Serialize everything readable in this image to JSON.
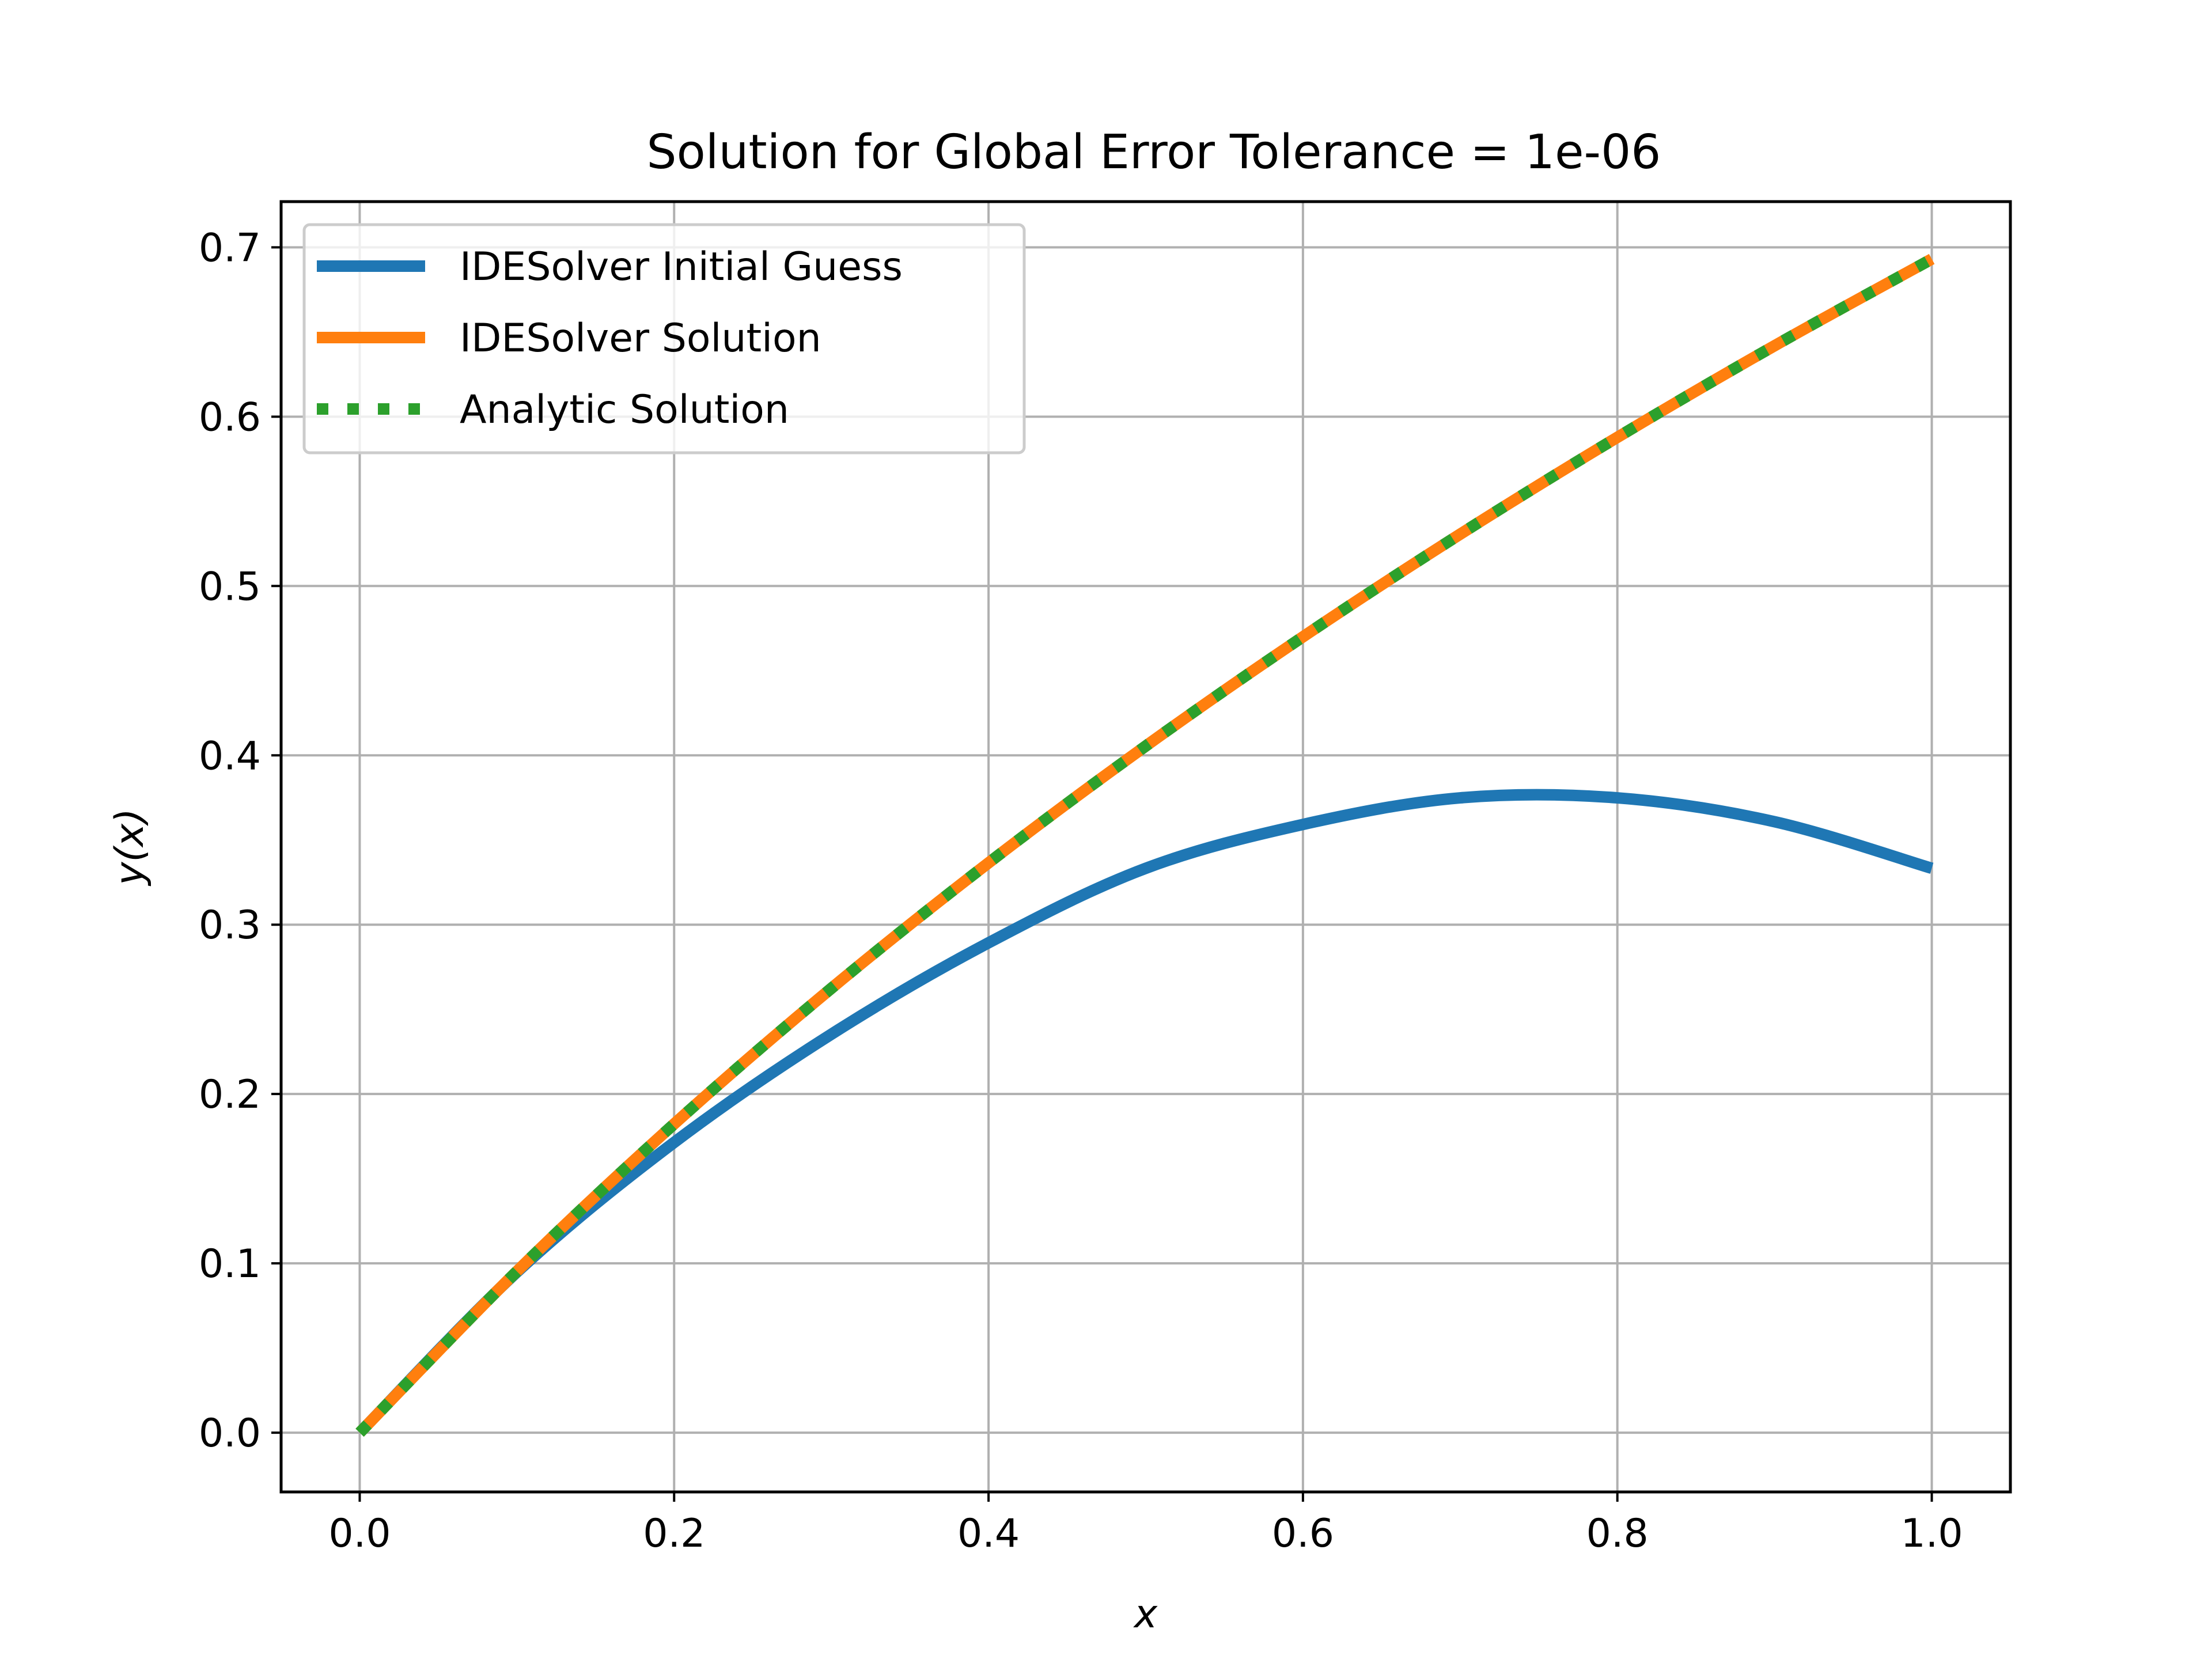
{
  "chart_data": {
    "type": "line",
    "title": "Solution for Global Error Tolerance = 1e-06",
    "xlabel": "x",
    "ylabel": "y(x)",
    "xlim": [
      -0.05,
      1.05
    ],
    "ylim": [
      -0.035,
      0.727
    ],
    "xticks": [
      0.0,
      0.2,
      0.4,
      0.6,
      0.8,
      1.0
    ],
    "xtick_labels": [
      "0.0",
      "0.2",
      "0.4",
      "0.6",
      "0.8",
      "1.0"
    ],
    "yticks": [
      0.0,
      0.1,
      0.2,
      0.3,
      0.4,
      0.5,
      0.6,
      0.7
    ],
    "ytick_labels": [
      "0.0",
      "0.1",
      "0.2",
      "0.3",
      "0.4",
      "0.5",
      "0.6",
      "0.7"
    ],
    "grid": true,
    "legend_position": "top-left",
    "x": [
      0.0,
      0.1,
      0.2,
      0.3,
      0.4,
      0.5,
      0.6,
      0.7,
      0.8,
      0.9,
      1.0
    ],
    "series": [
      {
        "name": "IDESolver Initial Guess",
        "color": "#1f77b4",
        "style": "solid",
        "values": [
          0.0,
          0.0948,
          0.1714,
          0.2353,
          0.2893,
          0.3333,
          0.3592,
          0.3749,
          0.3749,
          0.3608,
          0.3333
        ]
      },
      {
        "name": "IDESolver Solution",
        "color": "#ff7f0e",
        "style": "solid",
        "values": [
          0.0,
          0.0953,
          0.1823,
          0.2624,
          0.3365,
          0.4055,
          0.47,
          0.5306,
          0.5878,
          0.6419,
          0.6931
        ]
      },
      {
        "name": "Analytic Solution",
        "color": "#2ca02c",
        "style": "dotted",
        "values": [
          0.0,
          0.0953,
          0.1823,
          0.2624,
          0.3365,
          0.4055,
          0.47,
          0.5306,
          0.5878,
          0.6419,
          0.6931
        ]
      }
    ]
  }
}
